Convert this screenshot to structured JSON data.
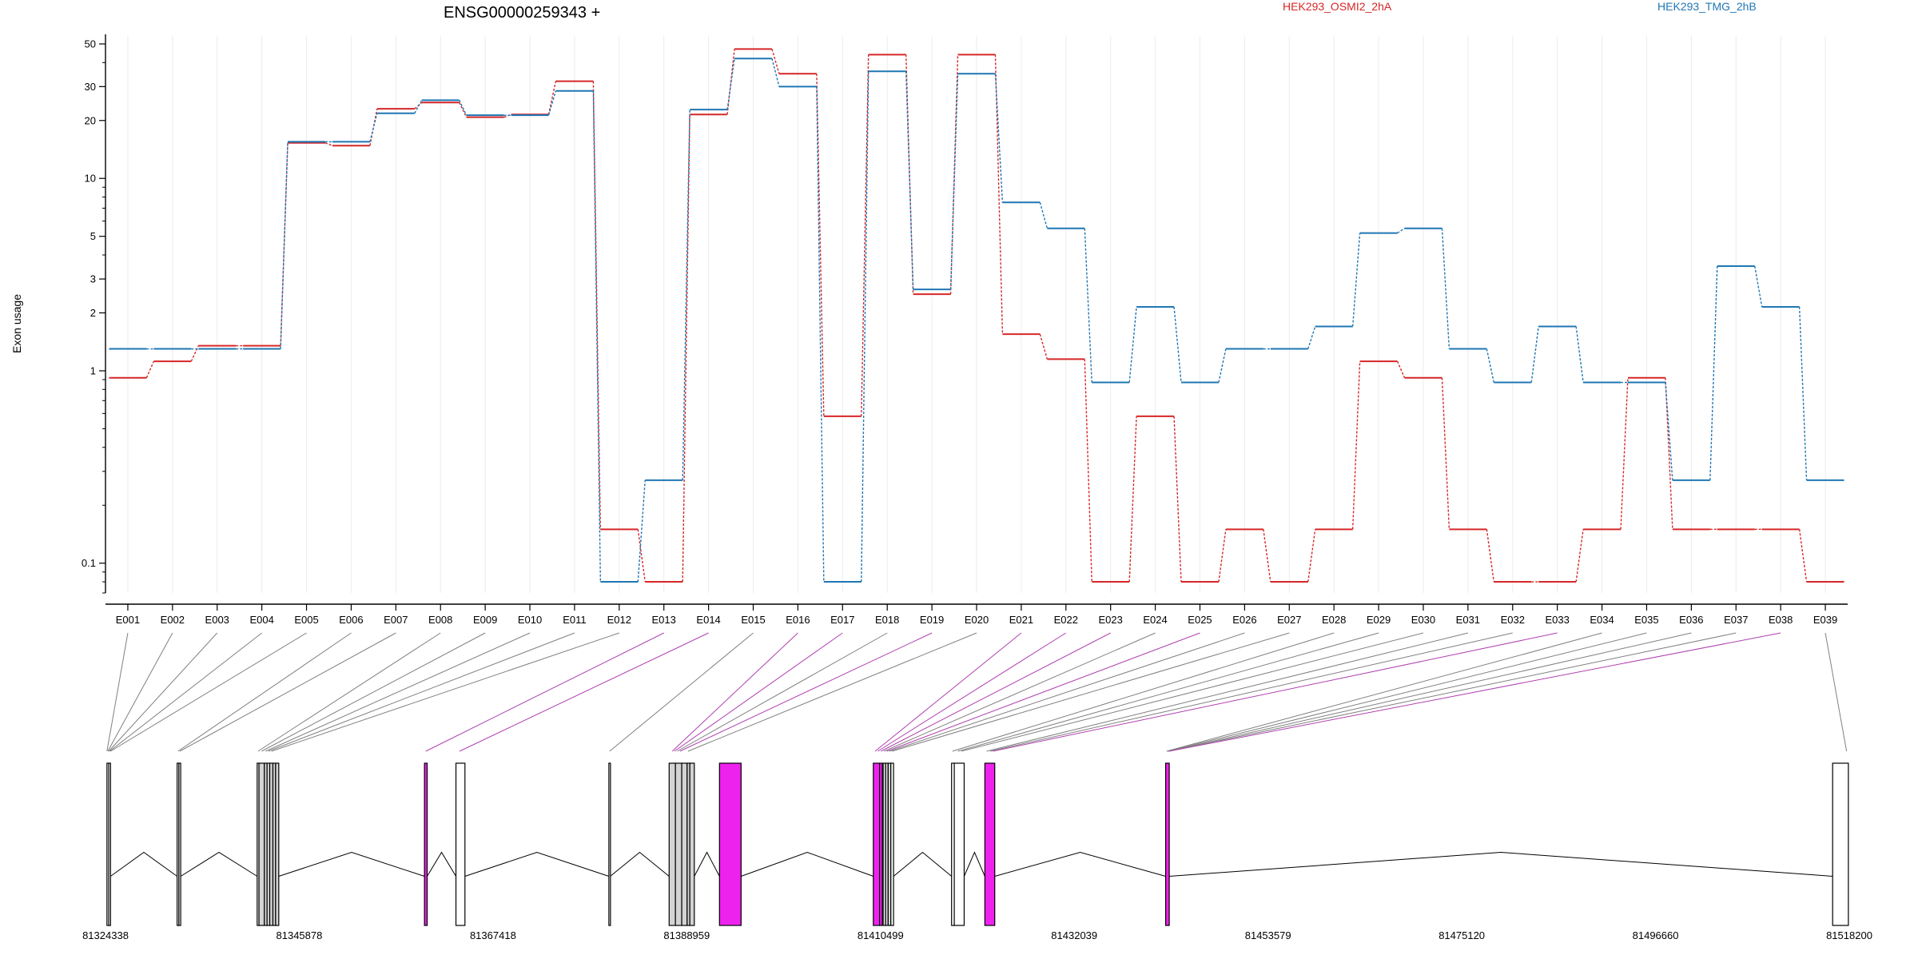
{
  "chart_data": {
    "type": "line",
    "title": "ENSG00000259343 +",
    "ylabel": "Exon usage",
    "yscale": "log",
    "ylim": [
      0.07,
      55
    ],
    "yticks": [
      0.1,
      1,
      2,
      3,
      5,
      10,
      20,
      30,
      50
    ],
    "ytick_labels": [
      "0.1",
      "1",
      "2",
      "3",
      "5",
      "10",
      "20",
      "30",
      "50"
    ],
    "grid": "vertical",
    "legend_position": "top",
    "categories": [
      "E001",
      "E002",
      "E003",
      "E004",
      "E005",
      "E006",
      "E007",
      "E008",
      "E009",
      "E010",
      "E011",
      "E012",
      "E013",
      "E014",
      "E015",
      "E016",
      "E017",
      "E018",
      "E019",
      "E020",
      "E021",
      "E022",
      "E023",
      "E024",
      "E025",
      "E026",
      "E027",
      "E028",
      "E029",
      "E030",
      "E031",
      "E032",
      "E033",
      "E034",
      "E035",
      "E036",
      "E037",
      "E038",
      "E039"
    ],
    "series": [
      {
        "name": "HEK293_OSMI2_2hA",
        "color": "#d62728",
        "values": [
          0.92,
          1.12,
          1.35,
          1.35,
          15.3,
          14.8,
          23.0,
          24.8,
          20.8,
          21.5,
          32.0,
          0.15,
          0.08,
          21.5,
          47.0,
          35.0,
          0.58,
          44.0,
          2.5,
          44.0,
          1.55,
          1.15,
          0.08,
          0.58,
          0.08,
          0.15,
          0.08,
          0.15,
          1.12,
          0.92,
          0.15,
          0.08,
          0.08,
          0.15,
          0.92,
          0.15,
          0.15,
          0.15,
          0.08
        ]
      },
      {
        "name": "HEK293_TMG_2hB",
        "color": "#1f77b4",
        "values": [
          1.3,
          1.3,
          1.3,
          1.3,
          15.5,
          15.5,
          21.8,
          25.5,
          21.3,
          21.3,
          28.5,
          0.08,
          0.27,
          22.8,
          42.0,
          30.0,
          0.08,
          36.0,
          2.65,
          35.0,
          7.5,
          5.5,
          0.87,
          2.15,
          0.87,
          1.3,
          1.3,
          1.7,
          5.2,
          5.5,
          1.3,
          0.87,
          1.7,
          0.87,
          0.87,
          0.27,
          3.5,
          2.15,
          0.27
        ]
      }
    ],
    "gene_model": {
      "coordinate_labels": [
        "81324338",
        "81345878",
        "81367418",
        "81388959",
        "81410499",
        "81432039",
        "81453579",
        "81475120",
        "81496660",
        "81518200"
      ],
      "start": 81324338,
      "end": 81518200,
      "exons": [
        {
          "id": "E001",
          "start": 81324500,
          "end": 81324700,
          "fill": "#ffffff",
          "connector": "#808080"
        },
        {
          "id": "E002",
          "start": 81324700,
          "end": 81324900,
          "fill": "#ffffff",
          "connector": "#808080"
        },
        {
          "id": "E003",
          "start": 81332300,
          "end": 81332500,
          "fill": "#ffffff",
          "connector": "#808080"
        },
        {
          "id": "E004",
          "start": 81332500,
          "end": 81332700,
          "fill": "#ffffff",
          "connector": "#808080"
        },
        {
          "id": "E005",
          "start": 81341200,
          "end": 81341400,
          "fill": "#ffffff",
          "connector": "#808080"
        },
        {
          "id": "E006",
          "start": 81341400,
          "end": 81342000,
          "fill": "#d3d3d3",
          "connector": "#808080"
        },
        {
          "id": "E007",
          "start": 81342000,
          "end": 81342300,
          "fill": "#d3d3d3",
          "connector": "#808080"
        },
        {
          "id": "E008",
          "start": 81342300,
          "end": 81342600,
          "fill": "#d3d3d3",
          "connector": "#808080"
        },
        {
          "id": "E009",
          "start": 81342600,
          "end": 81342950,
          "fill": "#d3d3d3",
          "connector": "#808080"
        },
        {
          "id": "E010",
          "start": 81342950,
          "end": 81343250,
          "fill": "#d3d3d3",
          "connector": "#808080"
        },
        {
          "id": "E011",
          "start": 81343250,
          "end": 81343600,
          "fill": "#d3d3d3",
          "connector": "#808080"
        },
        {
          "id": "E012",
          "start": 81359800,
          "end": 81360100,
          "fill": "#ee22ee",
          "connector": "#b040b0"
        },
        {
          "id": "E013",
          "start": 81363300,
          "end": 81364300,
          "fill": "#ffffff",
          "connector": "#b040b0"
        },
        {
          "id": "E014",
          "start": 81380300,
          "end": 81380450,
          "fill": "#ffffff",
          "connector": "#808080"
        },
        {
          "id": "E015",
          "start": 81387000,
          "end": 81387700,
          "fill": "#d3d3d3",
          "connector": "#b040b0"
        },
        {
          "id": "E016",
          "start": 81387700,
          "end": 81388400,
          "fill": "#d3d3d3",
          "connector": "#b040b0"
        },
        {
          "id": "E017",
          "start": 81388400,
          "end": 81389000,
          "fill": "#d3d3d3",
          "connector": "#b040b0"
        },
        {
          "id": "E018",
          "start": 81389000,
          "end": 81389300,
          "fill": "#d3d3d3",
          "connector": "#808080"
        },
        {
          "id": "E019",
          "start": 81389300,
          "end": 81389800,
          "fill": "#d3d3d3",
          "connector": "#b040b0"
        },
        {
          "id": "E020",
          "start": 81392600,
          "end": 81395000,
          "fill": "#ee22ee",
          "connector": "#b040b0"
        },
        {
          "id": "E021",
          "start": 81409700,
          "end": 81410400,
          "fill": "#ee22ee",
          "connector": "#b040b0"
        },
        {
          "id": "E022",
          "start": 81410400,
          "end": 81410700,
          "fill": "#ee22ee",
          "connector": "#b040b0"
        },
        {
          "id": "E023",
          "start": 81410800,
          "end": 81411050,
          "fill": "#ffffff",
          "connector": "#808080"
        },
        {
          "id": "E024",
          "start": 81411050,
          "end": 81411350,
          "fill": "#d3d3d3",
          "connector": "#b040b0"
        },
        {
          "id": "E025",
          "start": 81411350,
          "end": 81411650,
          "fill": "#d3d3d3",
          "connector": "#808080"
        },
        {
          "id": "E026",
          "start": 81411650,
          "end": 81411950,
          "fill": "#ffffff",
          "connector": "#808080"
        },
        {
          "id": "E027",
          "start": 81418400,
          "end": 81418700,
          "fill": "#ffffff",
          "connector": "#808080"
        },
        {
          "id": "E028",
          "start": 81418700,
          "end": 81419800,
          "fill": "#ffffff",
          "connector": "#808080"
        },
        {
          "id": "E029",
          "start": 81422100,
          "end": 81423200,
          "fill": "#ee22ee",
          "connector": "#b040b0"
        },
        {
          "id": "E030",
          "start": 81442200,
          "end": 81442600,
          "fill": "#ee22ee",
          "connector": "#b040b0"
        },
        {
          "id": "E031",
          "start": 81516350,
          "end": 81518100,
          "fill": "#ffffff",
          "connector": "#808080"
        }
      ],
      "fan_targets": [
        {
          "x": 81324500,
          "color": "#808080"
        },
        {
          "x": 81324600,
          "color": "#808080"
        },
        {
          "x": 81324700,
          "color": "#808080"
        },
        {
          "x": 81324800,
          "color": "#808080"
        },
        {
          "x": 81324900,
          "color": "#808080"
        },
        {
          "x": 81332400,
          "color": "#808080"
        },
        {
          "x": 81332600,
          "color": "#808080"
        },
        {
          "x": 81341300,
          "color": "#808080"
        },
        {
          "x": 81341700,
          "color": "#808080"
        },
        {
          "x": 81342150,
          "color": "#808080"
        },
        {
          "x": 81342450,
          "color": "#808080"
        },
        {
          "x": 81342800,
          "color": "#808080"
        },
        {
          "x": 81359950,
          "color": "#b040b0"
        },
        {
          "x": 81363700,
          "color": "#b040b0"
        },
        {
          "x": 81380380,
          "color": "#808080"
        },
        {
          "x": 81387350,
          "color": "#b040b0"
        },
        {
          "x": 81387600,
          "color": "#b040b0"
        },
        {
          "x": 81387900,
          "color": "#808080"
        },
        {
          "x": 81388200,
          "color": "#b040b0"
        },
        {
          "x": 81389100,
          "color": "#808080"
        },
        {
          "x": 81409900,
          "color": "#b040b0"
        },
        {
          "x": 81410200,
          "color": "#b040b0"
        },
        {
          "x": 81410550,
          "color": "#b040b0"
        },
        {
          "x": 81410900,
          "color": "#808080"
        },
        {
          "x": 81411200,
          "color": "#b040b0"
        },
        {
          "x": 81411500,
          "color": "#808080"
        },
        {
          "x": 81411800,
          "color": "#808080"
        },
        {
          "x": 81418500,
          "color": "#808080"
        },
        {
          "x": 81419100,
          "color": "#808080"
        },
        {
          "x": 81419500,
          "color": "#808080"
        },
        {
          "x": 81422300,
          "color": "#808080"
        },
        {
          "x": 81422700,
          "color": "#808080"
        },
        {
          "x": 81423000,
          "color": "#b040b0"
        },
        {
          "x": 81442300,
          "color": "#808080"
        },
        {
          "x": 81442400,
          "color": "#808080"
        },
        {
          "x": 81442500,
          "color": "#808080"
        },
        {
          "x": 81442550,
          "color": "#808080"
        },
        {
          "x": 81442600,
          "color": "#b040b0"
        },
        {
          "x": 81517900,
          "color": "#808080"
        }
      ]
    }
  }
}
